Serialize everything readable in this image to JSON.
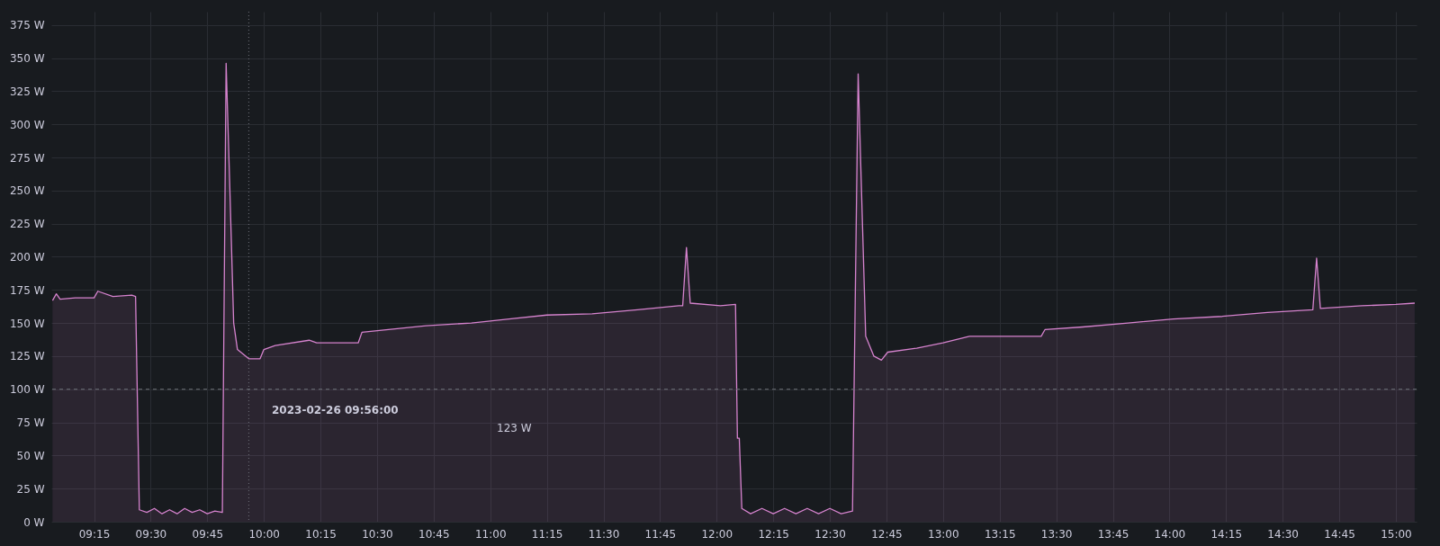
{
  "chart_data": {
    "type": "area",
    "grid": true,
    "line_style": "solid",
    "marker": "none",
    "xlim": [
      "2023-02-26T09:03:40",
      "2023-02-26T15:05:30"
    ],
    "xticks": [
      {
        "value": "2023-02-26T09:15",
        "label": "09:15"
      },
      {
        "value": "2023-02-26T09:30",
        "label": "09:30"
      },
      {
        "value": "2023-02-26T09:45",
        "label": "09:45"
      },
      {
        "value": "2023-02-26T10:00",
        "label": "10:00"
      },
      {
        "value": "2023-02-26T10:15",
        "label": "10:15"
      },
      {
        "value": "2023-02-26T10:30",
        "label": "10:30"
      },
      {
        "value": "2023-02-26T10:45",
        "label": "10:45"
      },
      {
        "value": "2023-02-26T11:00",
        "label": "11:00"
      },
      {
        "value": "2023-02-26T11:15",
        "label": "11:15"
      },
      {
        "value": "2023-02-26T11:30",
        "label": "11:30"
      },
      {
        "value": "2023-02-26T11:45",
        "label": "11:45"
      },
      {
        "value": "2023-02-26T12:00",
        "label": "12:00"
      },
      {
        "value": "2023-02-26T12:15",
        "label": "12:15"
      },
      {
        "value": "2023-02-26T12:30",
        "label": "12:30"
      },
      {
        "value": "2023-02-26T12:45",
        "label": "12:45"
      },
      {
        "value": "2023-02-26T13:00",
        "label": "13:00"
      },
      {
        "value": "2023-02-26T13:15",
        "label": "13:15"
      },
      {
        "value": "2023-02-26T13:30",
        "label": "13:30"
      },
      {
        "value": "2023-02-26T13:45",
        "label": "13:45"
      },
      {
        "value": "2023-02-26T14:00",
        "label": "14:00"
      },
      {
        "value": "2023-02-26T14:15",
        "label": "14:15"
      },
      {
        "value": "2023-02-26T14:30",
        "label": "14:30"
      },
      {
        "value": "2023-02-26T14:45",
        "label": "14:45"
      },
      {
        "value": "2023-02-26T15:00",
        "label": "15:00"
      }
    ],
    "ylim": [
      0,
      385
    ],
    "yticks": [
      {
        "value": 0,
        "label": "0 W"
      },
      {
        "value": 25,
        "label": "25 W"
      },
      {
        "value": 50,
        "label": "50 W"
      },
      {
        "value": 75,
        "label": "75 W"
      },
      {
        "value": 100,
        "label": "100 W"
      },
      {
        "value": 125,
        "label": "125 W"
      },
      {
        "value": 150,
        "label": "150 W"
      },
      {
        "value": 175,
        "label": "175 W"
      },
      {
        "value": 200,
        "label": "200 W"
      },
      {
        "value": 225,
        "label": "225 W"
      },
      {
        "value": 250,
        "label": "250 W"
      },
      {
        "value": 275,
        "label": "275 W"
      },
      {
        "value": 300,
        "label": "300 W"
      },
      {
        "value": 325,
        "label": "325 W"
      },
      {
        "value": 350,
        "label": "350 W"
      },
      {
        "value": 375,
        "label": "375 W"
      }
    ],
    "ref_lines": [
      {
        "axis": "y",
        "value": 100,
        "color": "#6e7179",
        "line_style": "dashed"
      },
      {
        "axis": "x",
        "value": "2023-02-26T09:56",
        "color": "#6e7179",
        "line_style": "dotted"
      }
    ],
    "annotations": [
      "2023-02-26 09:56:00",
      "123 W"
    ],
    "series": [
      {
        "color": "#d683ce",
        "x": [
          "2023-02-26T09:04",
          "2023-02-26T09:05",
          "2023-02-26T09:06",
          "2023-02-26T09:10",
          "2023-02-26T09:15",
          "2023-02-26T09:16",
          "2023-02-26T09:20",
          "2023-02-26T09:25",
          "2023-02-26T09:26",
          "2023-02-26T09:27",
          "2023-02-26T09:29",
          "2023-02-26T09:31",
          "2023-02-26T09:33",
          "2023-02-26T09:35",
          "2023-02-26T09:37",
          "2023-02-26T09:39",
          "2023-02-26T09:41",
          "2023-02-26T09:43",
          "2023-02-26T09:45",
          "2023-02-26T09:47",
          "2023-02-26T09:49",
          "2023-02-26T09:50",
          "2023-02-26T09:51",
          "2023-02-26T09:52",
          "2023-02-26T09:53",
          "2023-02-26T09:56",
          "2023-02-26T09:59",
          "2023-02-26T10:00",
          "2023-02-26T10:03",
          "2023-02-26T10:12",
          "2023-02-26T10:14",
          "2023-02-26T10:25",
          "2023-02-26T10:26",
          "2023-02-26T10:33",
          "2023-02-26T10:43",
          "2023-02-26T10:55",
          "2023-02-26T11:05",
          "2023-02-26T11:15",
          "2023-02-26T11:27",
          "2023-02-26T11:39",
          "2023-02-26T11:50",
          "2023-02-26T11:51",
          "2023-02-26T11:52",
          "2023-02-26T11:53",
          "2023-02-26T12:01",
          "2023-02-26T12:05",
          "2023-02-26T12:05:30",
          "2023-02-26T12:06",
          "2023-02-26T12:06:40",
          "2023-02-26T12:09",
          "2023-02-26T12:12",
          "2023-02-26T12:15",
          "2023-02-26T12:18",
          "2023-02-26T12:21",
          "2023-02-26T12:24",
          "2023-02-26T12:27",
          "2023-02-26T12:30",
          "2023-02-26T12:33",
          "2023-02-26T12:36",
          "2023-02-26T12:37:30",
          "2023-02-26T12:39:30",
          "2023-02-26T12:41:40",
          "2023-02-26T12:43:40",
          "2023-02-26T12:45:20",
          "2023-02-26T12:53",
          "2023-02-26T13:00",
          "2023-02-26T13:07",
          "2023-02-26T13:26",
          "2023-02-26T13:27",
          "2023-02-26T13:37",
          "2023-02-26T13:49",
          "2023-02-26T14:01",
          "2023-02-26T14:14",
          "2023-02-26T14:26",
          "2023-02-26T14:38",
          "2023-02-26T14:39",
          "2023-02-26T14:40",
          "2023-02-26T14:51",
          "2023-02-26T15:00",
          "2023-02-26T15:05"
        ],
        "values": [
          167,
          172,
          168,
          169,
          169,
          174,
          170,
          171,
          170,
          9,
          7,
          10,
          6,
          9,
          6,
          10,
          7,
          9,
          6,
          8,
          7,
          346,
          250,
          150,
          130,
          123,
          123,
          130,
          133,
          137,
          135,
          135,
          143,
          145,
          148,
          150,
          153,
          156,
          157,
          160,
          163,
          163,
          207,
          165,
          163,
          164,
          63,
          63,
          10,
          6,
          10,
          6,
          10,
          6,
          10,
          6,
          10,
          6,
          8,
          338,
          140,
          125,
          122,
          128,
          131,
          135,
          140,
          140,
          145,
          147,
          150,
          153,
          155,
          158,
          160,
          199,
          161,
          163,
          164,
          165
        ]
      }
    ]
  }
}
